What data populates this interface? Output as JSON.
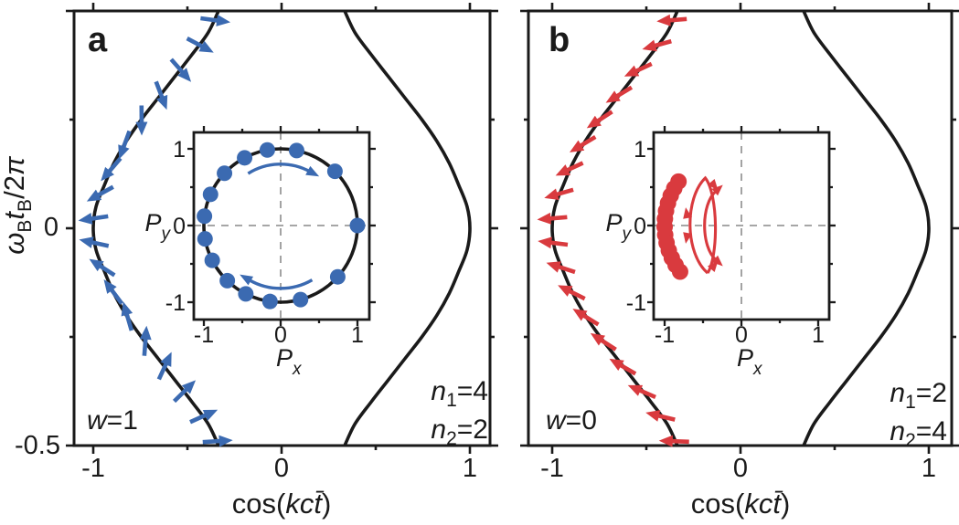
{
  "colors": {
    "axis": "#1a1a1a",
    "dash": "#999999",
    "blue": "#3b6ab1",
    "red": "#d93a3e",
    "background": "#ffffff"
  },
  "y_axis": {
    "tick_labels": [
      "0",
      "-0.5"
    ],
    "label_omega": "ω",
    "label_sub1": "B",
    "label_t": "t",
    "label_sub2": "B",
    "label_frac": "/2",
    "label_pi": "π"
  },
  "x_axis": {
    "tick_labels": [
      "-1",
      "0",
      "1"
    ],
    "label_prefix": "cos(",
    "label_italic": "kct̄",
    "label_suffix": ")"
  },
  "inset_axis": {
    "y_tick_labels": [
      "1",
      "0",
      "-1"
    ],
    "x_tick_labels": [
      "-1",
      "0",
      "1"
    ],
    "y_label_base": "P",
    "y_label_sub": "y",
    "x_label_base": "P",
    "x_label_sub": "x"
  },
  "panels": [
    {
      "letter": "a",
      "w_var": "w",
      "w_eq": "=1",
      "n1_base": "n",
      "n1_sub": "1",
      "n1_eq": "=4",
      "n2_base": "n",
      "n2_sub": "2",
      "n2_eq": "=2"
    },
    {
      "letter": "b",
      "w_var": "w",
      "w_eq": "=0",
      "n1_base": "n",
      "n1_sub": "1",
      "n1_eq": "=2",
      "n2_base": "n",
      "n2_sub": "2",
      "n2_eq": "=4"
    }
  ],
  "chart_data": [
    {
      "panel": "a",
      "type": "line",
      "xlabel": "cos(kct̄)",
      "ylabel": "ωBtB/2π",
      "xlim": [
        -1.1,
        1.1
      ],
      "ylim": [
        -0.5,
        0.5
      ],
      "x_ticks": [
        -1,
        -0.5,
        0,
        0.5,
        1
      ],
      "x_ticks_labeled": [
        -1,
        0,
        1
      ],
      "y_ticks": [
        -0.5,
        -0.25,
        0,
        0.25,
        0.5
      ],
      "y_ticks_labeled": [
        0,
        -0.5
      ],
      "w": 1,
      "winding_number": 1,
      "n1": 4,
      "n2": 2,
      "curve_y": [
        -0.5,
        -0.45,
        -0.4,
        -0.35,
        -0.3,
        -0.25,
        -0.2,
        -0.15,
        -0.1,
        -0.05,
        0,
        0.05,
        0.1,
        0.15,
        0.2,
        0.25,
        0.3,
        0.35,
        0.4,
        0.45,
        0.5
      ],
      "curve_x_left": [
        -0.335,
        -0.39,
        -0.475,
        -0.565,
        -0.655,
        -0.745,
        -0.825,
        -0.89,
        -0.94,
        -0.985,
        -1,
        -0.985,
        -0.94,
        -0.89,
        -0.825,
        -0.745,
        -0.655,
        -0.565,
        -0.475,
        -0.39,
        -0.335
      ],
      "curve_x_right": [
        0.335,
        0.39,
        0.475,
        0.565,
        0.655,
        0.745,
        0.825,
        0.89,
        0.94,
        0.985,
        1,
        0.985,
        0.94,
        0.89,
        0.825,
        0.745,
        0.655,
        0.565,
        0.475,
        0.39,
        0.335
      ],
      "arrows": {
        "y": [
          -0.49,
          -0.433,
          -0.376,
          -0.319,
          -0.262,
          -0.205,
          -0.148,
          -0.091,
          -0.034,
          0.023,
          0.08,
          0.137,
          0.194,
          0.251,
          0.308,
          0.365,
          0.422,
          0.479
        ],
        "angle_deg": [
          3.6,
          24.1,
          44.6,
          65.2,
          85.7,
          106.2,
          126.7,
          147.2,
          167.8,
          188.3,
          208.8,
          229.3,
          249.8,
          270.4,
          290.9,
          311.4,
          331.9,
          352.4
        ]
      },
      "inset": {
        "type": "scatter",
        "xlabel": "Px",
        "ylabel": "Py",
        "xlim": [
          -1.15,
          1.15
        ],
        "ylim": [
          -1.25,
          1.25
        ],
        "x_ticks": [
          -1,
          -0.5,
          0,
          0.5,
          1
        ],
        "y_ticks": [
          -1,
          -0.5,
          0,
          0.5,
          1
        ],
        "unit_circle": true,
        "dot_radius": 8.5,
        "dot_angle_deg": [
          100,
          78,
          45,
          0,
          -42,
          -75,
          -98,
          -117,
          -134,
          -153,
          -170,
          173,
          156,
          137,
          118
        ],
        "rotation": "clockwise",
        "rotation_arcs": [
          {
            "r": 0.8,
            "from_deg": 122,
            "to_deg": 62
          },
          {
            "r": 0.82,
            "from_deg": -60,
            "to_deg": -120
          }
        ]
      }
    },
    {
      "panel": "b",
      "type": "line",
      "xlabel": "cos(kct̄)",
      "ylabel": "ωBtB/2π",
      "xlim": [
        -1.1,
        1.1
      ],
      "ylim": [
        -0.5,
        0.5
      ],
      "x_ticks": [
        -1,
        -0.5,
        0,
        0.5,
        1
      ],
      "x_ticks_labeled": [
        -1,
        0,
        1
      ],
      "y_ticks": [
        -0.5,
        -0.25,
        0,
        0.25,
        0.5
      ],
      "y_ticks_labeled": [],
      "w": 0,
      "winding_number": 0,
      "n1": 2,
      "n2": 4,
      "curve_y": [
        -0.5,
        -0.45,
        -0.4,
        -0.35,
        -0.3,
        -0.25,
        -0.2,
        -0.15,
        -0.1,
        -0.05,
        0,
        0.05,
        0.1,
        0.15,
        0.2,
        0.25,
        0.3,
        0.35,
        0.4,
        0.45,
        0.5
      ],
      "curve_x_left": [
        -0.335,
        -0.39,
        -0.475,
        -0.565,
        -0.655,
        -0.745,
        -0.825,
        -0.89,
        -0.94,
        -0.985,
        -1,
        -0.985,
        -0.94,
        -0.89,
        -0.825,
        -0.745,
        -0.655,
        -0.565,
        -0.475,
        -0.39,
        -0.335
      ],
      "curve_x_right": [
        0.335,
        0.39,
        0.475,
        0.565,
        0.655,
        0.745,
        0.825,
        0.89,
        0.94,
        0.985,
        1,
        0.985,
        0.94,
        0.89,
        0.825,
        0.745,
        0.655,
        0.565,
        0.475,
        0.39,
        0.335
      ],
      "arrows": {
        "y": [
          -0.49,
          -0.433,
          -0.376,
          -0.319,
          -0.262,
          -0.205,
          -0.148,
          -0.091,
          -0.034,
          0.023,
          0.08,
          0.137,
          0.194,
          0.251,
          0.308,
          0.365,
          0.422,
          0.479
        ],
        "angle_deg": [
          177.9,
          166.5,
          156.6,
          150.0,
          147.1,
          148.3,
          153.5,
          162.1,
          173.0,
          184.8,
          195.9,
          205.0,
          211.0,
          213.0,
          210.8,
          204.8,
          195.5,
          184.4
        ]
      },
      "inset": {
        "type": "scatter",
        "xlabel": "Px",
        "ylabel": "Py",
        "xlim": [
          -1.15,
          1.15
        ],
        "ylim": [
          -1.25,
          1.25
        ],
        "x_ticks": [
          -1,
          -0.5,
          0,
          0.5,
          1
        ],
        "y_ticks": [
          -1,
          -0.5,
          0,
          0.5,
          1
        ],
        "unit_circle": false,
        "dot_radius": 9,
        "dot_angle_deg": [
          145,
          151,
          157,
          163,
          169,
          175,
          181,
          187,
          193,
          199,
          205,
          211,
          217
        ],
        "motion": "oscillation",
        "oscillation_loops": true
      }
    }
  ]
}
